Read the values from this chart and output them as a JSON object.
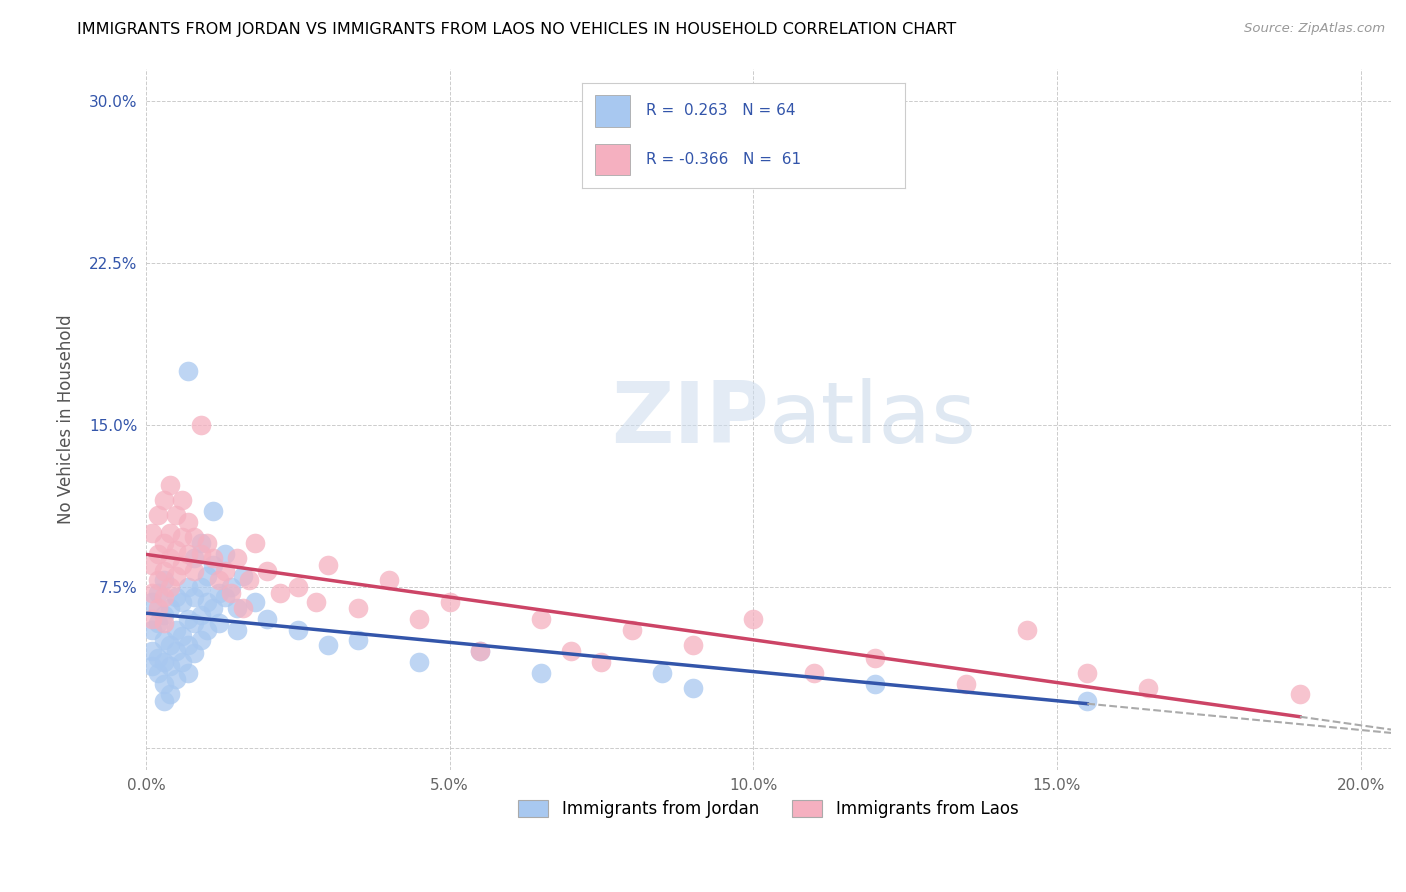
{
  "title": "IMMIGRANTS FROM JORDAN VS IMMIGRANTS FROM LAOS NO VEHICLES IN HOUSEHOLD CORRELATION CHART",
  "source": "Source: ZipAtlas.com",
  "ylabel": "No Vehicles in Household",
  "xmin": 0.0,
  "xmax": 0.205,
  "ymin": -0.01,
  "ymax": 0.315,
  "xticks": [
    0.0,
    0.05,
    0.1,
    0.15,
    0.2
  ],
  "xtick_labels": [
    "0.0%",
    "5.0%",
    "10.0%",
    "15.0%",
    "20.0%"
  ],
  "yticks": [
    0.0,
    0.075,
    0.15,
    0.225,
    0.3
  ],
  "ytick_labels": [
    "",
    "7.5%",
    "15.0%",
    "22.5%",
    "30.0%"
  ],
  "jordan_color": "#a8c8f0",
  "laos_color": "#f5b0c0",
  "jordan_line_color": "#3355aa",
  "laos_line_color": "#cc4466",
  "jordan_R": 0.263,
  "jordan_N": 64,
  "laos_R": -0.366,
  "laos_N": 61,
  "watermark": "ZIPatlas",
  "jordan_scatter": [
    [
      0.001,
      0.068
    ],
    [
      0.001,
      0.055
    ],
    [
      0.001,
      0.045
    ],
    [
      0.001,
      0.038
    ],
    [
      0.002,
      0.072
    ],
    [
      0.002,
      0.058
    ],
    [
      0.002,
      0.042
    ],
    [
      0.002,
      0.035
    ],
    [
      0.003,
      0.078
    ],
    [
      0.003,
      0.062
    ],
    [
      0.003,
      0.05
    ],
    [
      0.003,
      0.04
    ],
    [
      0.003,
      0.03
    ],
    [
      0.003,
      0.022
    ],
    [
      0.004,
      0.065
    ],
    [
      0.004,
      0.048
    ],
    [
      0.004,
      0.038
    ],
    [
      0.004,
      0.025
    ],
    [
      0.005,
      0.07
    ],
    [
      0.005,
      0.055
    ],
    [
      0.005,
      0.045
    ],
    [
      0.005,
      0.032
    ],
    [
      0.006,
      0.068
    ],
    [
      0.006,
      0.052
    ],
    [
      0.006,
      0.04
    ],
    [
      0.007,
      0.175
    ],
    [
      0.007,
      0.075
    ],
    [
      0.007,
      0.06
    ],
    [
      0.007,
      0.048
    ],
    [
      0.007,
      0.035
    ],
    [
      0.008,
      0.088
    ],
    [
      0.008,
      0.07
    ],
    [
      0.008,
      0.058
    ],
    [
      0.008,
      0.044
    ],
    [
      0.009,
      0.095
    ],
    [
      0.009,
      0.075
    ],
    [
      0.009,
      0.062
    ],
    [
      0.009,
      0.05
    ],
    [
      0.01,
      0.08
    ],
    [
      0.01,
      0.068
    ],
    [
      0.01,
      0.055
    ],
    [
      0.011,
      0.11
    ],
    [
      0.011,
      0.085
    ],
    [
      0.011,
      0.065
    ],
    [
      0.012,
      0.072
    ],
    [
      0.012,
      0.058
    ],
    [
      0.013,
      0.09
    ],
    [
      0.013,
      0.07
    ],
    [
      0.014,
      0.075
    ],
    [
      0.015,
      0.065
    ],
    [
      0.015,
      0.055
    ],
    [
      0.016,
      0.08
    ],
    [
      0.018,
      0.068
    ],
    [
      0.02,
      0.06
    ],
    [
      0.025,
      0.055
    ],
    [
      0.03,
      0.048
    ],
    [
      0.035,
      0.05
    ],
    [
      0.045,
      0.04
    ],
    [
      0.055,
      0.045
    ],
    [
      0.065,
      0.035
    ],
    [
      0.085,
      0.035
    ],
    [
      0.09,
      0.028
    ],
    [
      0.12,
      0.03
    ],
    [
      0.155,
      0.022
    ]
  ],
  "laos_scatter": [
    [
      0.001,
      0.1
    ],
    [
      0.001,
      0.085
    ],
    [
      0.001,
      0.072
    ],
    [
      0.001,
      0.06
    ],
    [
      0.002,
      0.108
    ],
    [
      0.002,
      0.09
    ],
    [
      0.002,
      0.078
    ],
    [
      0.002,
      0.065
    ],
    [
      0.003,
      0.115
    ],
    [
      0.003,
      0.095
    ],
    [
      0.003,
      0.082
    ],
    [
      0.003,
      0.07
    ],
    [
      0.003,
      0.058
    ],
    [
      0.004,
      0.122
    ],
    [
      0.004,
      0.1
    ],
    [
      0.004,
      0.088
    ],
    [
      0.004,
      0.075
    ],
    [
      0.005,
      0.108
    ],
    [
      0.005,
      0.092
    ],
    [
      0.005,
      0.08
    ],
    [
      0.006,
      0.115
    ],
    [
      0.006,
      0.098
    ],
    [
      0.006,
      0.085
    ],
    [
      0.007,
      0.105
    ],
    [
      0.007,
      0.09
    ],
    [
      0.008,
      0.098
    ],
    [
      0.008,
      0.082
    ],
    [
      0.009,
      0.15
    ],
    [
      0.009,
      0.09
    ],
    [
      0.01,
      0.095
    ],
    [
      0.011,
      0.088
    ],
    [
      0.012,
      0.078
    ],
    [
      0.013,
      0.082
    ],
    [
      0.014,
      0.072
    ],
    [
      0.015,
      0.088
    ],
    [
      0.016,
      0.065
    ],
    [
      0.017,
      0.078
    ],
    [
      0.018,
      0.095
    ],
    [
      0.02,
      0.082
    ],
    [
      0.022,
      0.072
    ],
    [
      0.025,
      0.075
    ],
    [
      0.028,
      0.068
    ],
    [
      0.03,
      0.085
    ],
    [
      0.035,
      0.065
    ],
    [
      0.04,
      0.078
    ],
    [
      0.045,
      0.06
    ],
    [
      0.05,
      0.068
    ],
    [
      0.055,
      0.045
    ],
    [
      0.065,
      0.06
    ],
    [
      0.07,
      0.045
    ],
    [
      0.075,
      0.04
    ],
    [
      0.08,
      0.055
    ],
    [
      0.09,
      0.048
    ],
    [
      0.1,
      0.06
    ],
    [
      0.11,
      0.035
    ],
    [
      0.12,
      0.042
    ],
    [
      0.135,
      0.03
    ],
    [
      0.145,
      0.055
    ],
    [
      0.155,
      0.035
    ],
    [
      0.165,
      0.028
    ],
    [
      0.19,
      0.025
    ]
  ]
}
